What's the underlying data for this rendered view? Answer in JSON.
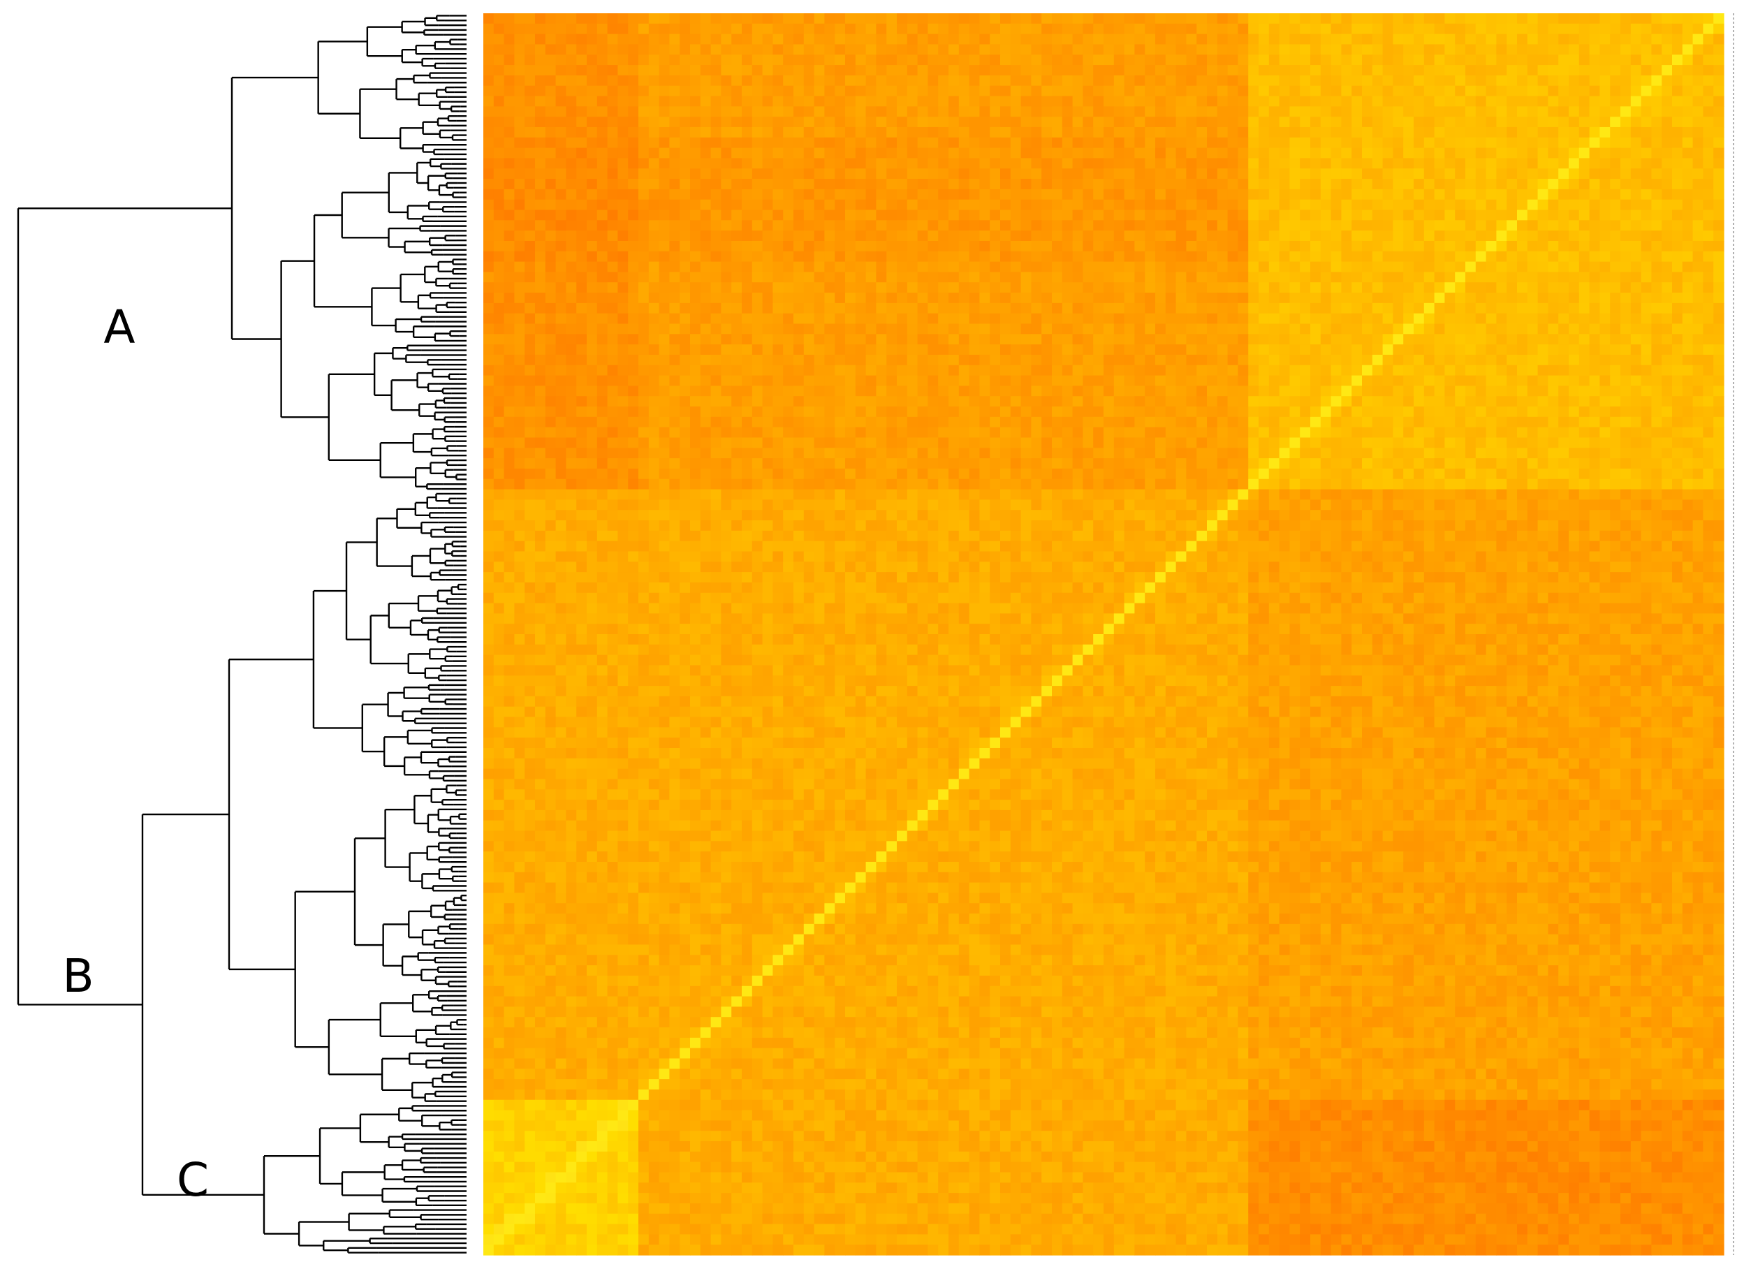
{
  "clusters": {
    "a": "A",
    "b": "B",
    "c": "C"
  }
}
